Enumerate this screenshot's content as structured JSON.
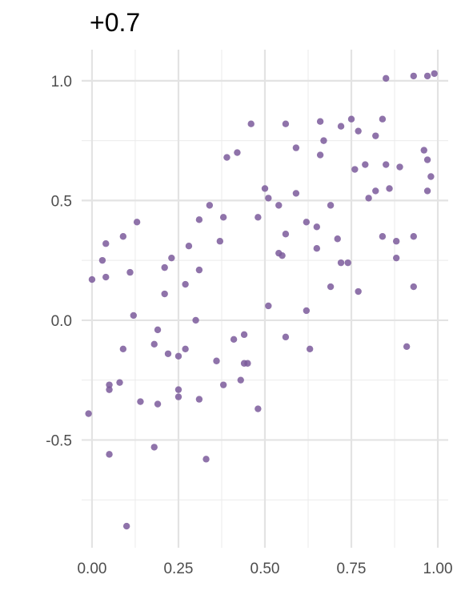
{
  "chart_data": {
    "type": "scatter",
    "title": "+0.7",
    "xlabel": "",
    "ylabel": "",
    "xlim": [
      -0.03,
      1.03
    ],
    "ylim": [
      -0.95,
      1.13
    ],
    "x_ticks": [
      0.0,
      0.25,
      0.5,
      0.75,
      1.0
    ],
    "x_tick_labels": [
      "0.00",
      "0.25",
      "0.50",
      "0.75",
      "1.00"
    ],
    "y_ticks": [
      -0.5,
      0.0,
      0.5,
      1.0
    ],
    "y_tick_labels": [
      "-0.5",
      "0.0",
      "0.5",
      "1.0"
    ],
    "grid": true,
    "legend": "none",
    "point_color": "#7b5a9b",
    "points": [
      [
        -0.01,
        -0.39
      ],
      [
        0.0,
        0.17
      ],
      [
        0.03,
        0.25
      ],
      [
        0.04,
        0.32
      ],
      [
        0.04,
        0.18
      ],
      [
        0.05,
        -0.27
      ],
      [
        0.05,
        -0.29
      ],
      [
        0.05,
        -0.56
      ],
      [
        0.08,
        -0.26
      ],
      [
        0.09,
        -0.12
      ],
      [
        0.09,
        0.35
      ],
      [
        0.1,
        -0.86
      ],
      [
        0.11,
        0.2
      ],
      [
        0.12,
        0.02
      ],
      [
        0.13,
        0.41
      ],
      [
        0.14,
        -0.34
      ],
      [
        0.18,
        -0.1
      ],
      [
        0.18,
        -0.53
      ],
      [
        0.19,
        -0.04
      ],
      [
        0.19,
        -0.35
      ],
      [
        0.21,
        0.22
      ],
      [
        0.21,
        0.11
      ],
      [
        0.22,
        -0.14
      ],
      [
        0.23,
        0.26
      ],
      [
        0.25,
        -0.15
      ],
      [
        0.25,
        -0.32
      ],
      [
        0.25,
        -0.29
      ],
      [
        0.27,
        -0.12
      ],
      [
        0.27,
        0.15
      ],
      [
        0.28,
        0.31
      ],
      [
        0.3,
        0.0
      ],
      [
        0.31,
        0.21
      ],
      [
        0.31,
        0.42
      ],
      [
        0.31,
        -0.33
      ],
      [
        0.33,
        -0.58
      ],
      [
        0.34,
        0.48
      ],
      [
        0.36,
        -0.17
      ],
      [
        0.37,
        0.33
      ],
      [
        0.38,
        0.43
      ],
      [
        0.38,
        -0.27
      ],
      [
        0.39,
        0.68
      ],
      [
        0.41,
        -0.08
      ],
      [
        0.42,
        0.7
      ],
      [
        0.43,
        -0.25
      ],
      [
        0.44,
        -0.06
      ],
      [
        0.44,
        -0.18
      ],
      [
        0.45,
        -0.18
      ],
      [
        0.46,
        0.82
      ],
      [
        0.48,
        0.43
      ],
      [
        0.48,
        -0.37
      ],
      [
        0.5,
        0.55
      ],
      [
        0.51,
        0.06
      ],
      [
        0.51,
        0.51
      ],
      [
        0.54,
        0.28
      ],
      [
        0.54,
        0.48
      ],
      [
        0.55,
        0.27
      ],
      [
        0.56,
        0.36
      ],
      [
        0.56,
        -0.07
      ],
      [
        0.56,
        0.82
      ],
      [
        0.59,
        0.72
      ],
      [
        0.59,
        0.53
      ],
      [
        0.62,
        0.41
      ],
      [
        0.62,
        0.04
      ],
      [
        0.63,
        -0.12
      ],
      [
        0.65,
        0.39
      ],
      [
        0.65,
        0.3
      ],
      [
        0.66,
        0.83
      ],
      [
        0.66,
        0.69
      ],
      [
        0.67,
        0.75
      ],
      [
        0.69,
        0.48
      ],
      [
        0.69,
        0.14
      ],
      [
        0.71,
        0.34
      ],
      [
        0.72,
        0.24
      ],
      [
        0.72,
        0.81
      ],
      [
        0.74,
        0.24
      ],
      [
        0.75,
        0.84
      ],
      [
        0.76,
        0.63
      ],
      [
        0.77,
        0.12
      ],
      [
        0.77,
        0.79
      ],
      [
        0.79,
        0.65
      ],
      [
        0.8,
        0.51
      ],
      [
        0.82,
        0.77
      ],
      [
        0.82,
        0.54
      ],
      [
        0.84,
        0.84
      ],
      [
        0.84,
        0.35
      ],
      [
        0.85,
        1.01
      ],
      [
        0.85,
        0.65
      ],
      [
        0.86,
        0.55
      ],
      [
        0.88,
        0.26
      ],
      [
        0.88,
        0.33
      ],
      [
        0.89,
        0.64
      ],
      [
        0.91,
        -0.11
      ],
      [
        0.93,
        1.02
      ],
      [
        0.93,
        0.35
      ],
      [
        0.93,
        0.14
      ],
      [
        0.96,
        0.71
      ],
      [
        0.97,
        0.67
      ],
      [
        0.97,
        0.54
      ],
      [
        0.97,
        1.02
      ],
      [
        0.98,
        0.6
      ],
      [
        0.99,
        1.03
      ]
    ]
  }
}
